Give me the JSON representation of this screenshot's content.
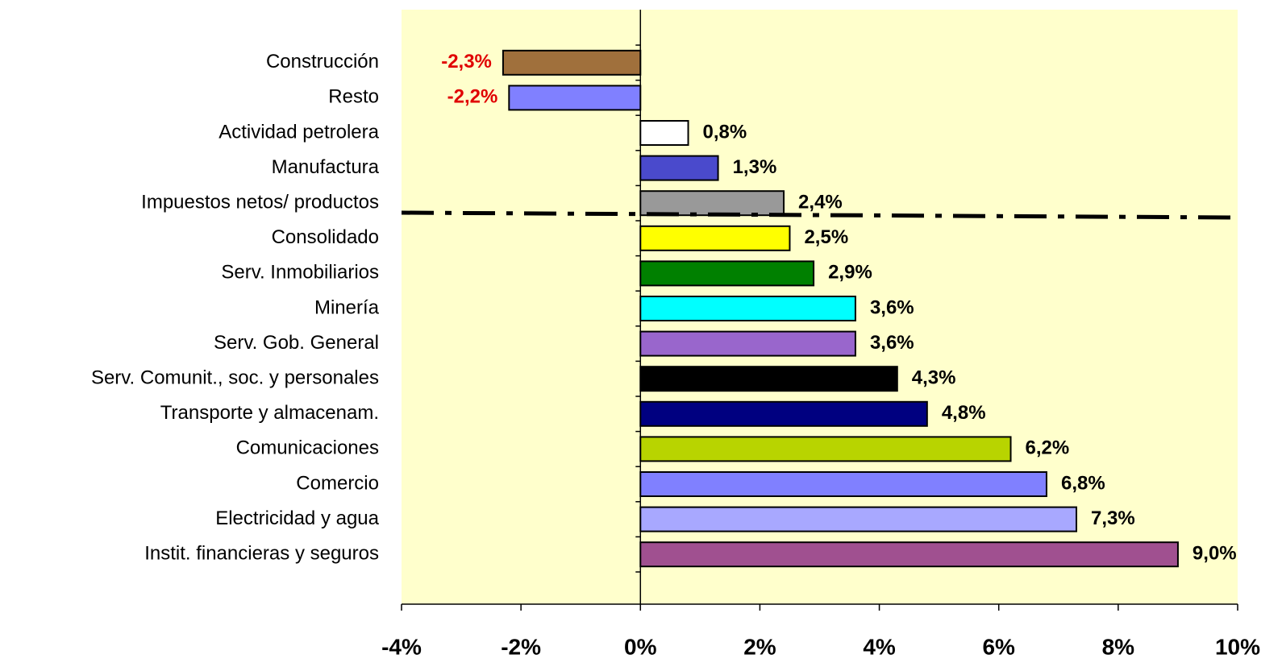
{
  "chart_data": {
    "type": "bar",
    "orientation": "horizontal",
    "categories": [
      "Construcción",
      "Resto",
      "Actividad petrolera",
      "Manufactura",
      "Impuestos netos/ productos",
      "Consolidado",
      "Serv. Inmobiliarios",
      "Minería",
      "Serv. Gob. General",
      "Serv. Comunit., soc. y personales",
      "Transporte y almacenam.",
      "Comunicaciones",
      "Comercio",
      "Electricidad y agua",
      "Instit. financieras y seguros"
    ],
    "values": [
      -2.3,
      -2.2,
      0.8,
      1.3,
      2.4,
      2.5,
      2.9,
      3.6,
      3.6,
      4.3,
      4.8,
      6.2,
      6.8,
      7.3,
      9.0
    ],
    "value_labels": [
      "-2,3%",
      "-2,2%",
      "0,8%",
      "1,3%",
      "2,4%",
      "2,5%",
      "2,9%",
      "3,6%",
      "3,6%",
      "4,3%",
      "4,8%",
      "6,2%",
      "6,8%",
      "7,3%",
      "9,0%"
    ],
    "colors": [
      "#a0703c",
      "#8080ff",
      "#ffffff",
      "#4a4acc",
      "#999999",
      "#ffff00",
      "#008000",
      "#00ffff",
      "#9966cc",
      "#000000",
      "#000080",
      "#b8d400",
      "#8080ff",
      "#a8a8ff",
      "#a05090"
    ],
    "xlim": [
      -4,
      10
    ],
    "xticks": [
      {
        "value": -4,
        "label": "-4%"
      },
      {
        "value": -2,
        "label": "-2%"
      },
      {
        "value": 0,
        "label": "0%"
      },
      {
        "value": 2,
        "label": "2%"
      },
      {
        "value": 4,
        "label": "4%"
      },
      {
        "value": 6,
        "label": "6%"
      },
      {
        "value": 8,
        "label": "8%"
      },
      {
        "value": 10,
        "label": "10%"
      }
    ]
  }
}
